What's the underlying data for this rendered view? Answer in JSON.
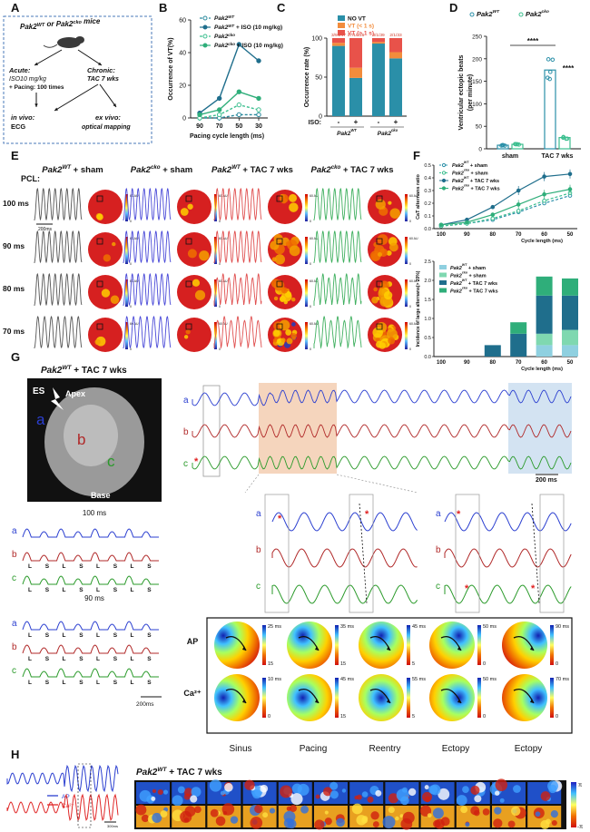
{
  "panels": [
    "A",
    "B",
    "C",
    "D",
    "E",
    "F",
    "G",
    "H"
  ],
  "panelA": {
    "title_pre": "Pak2",
    "title_wt": "WT",
    "title_mid": " or Pak2",
    "title_cko": "cko",
    "title_post": " mice",
    "acute_title": "Acute:",
    "acute_l1": "ISO10 mg/kg",
    "acute_l2": "+ Pacing: 100 times",
    "chronic_title": "Chronic:",
    "chronic_l1": "TAC 7 wks",
    "invivo_title": "in vivo:",
    "invivo_l1": "ECG",
    "exvivo_title": "ex vivo:",
    "exvivo_l1": "optical mapping"
  },
  "chart_data": [
    {
      "panel": "B",
      "type": "line",
      "xlabel": "Pacing cycle length (ms)",
      "ylabel": "Occurrence of VT(%)",
      "x": [
        90,
        70,
        50,
        30
      ],
      "ylim": [
        0,
        60
      ],
      "yticks": [
        0,
        20,
        40,
        60
      ],
      "series": [
        {
          "name": "Pak2WT",
          "values": [
            0,
            0,
            2,
            2
          ],
          "color": "#2a8a9e",
          "dashed": true,
          "filled": false
        },
        {
          "name": "Pak2WT + ISO (10 mg/kg)",
          "values": [
            3,
            12,
            45,
            35
          ],
          "color": "#1f6e8c",
          "dashed": false,
          "filled": true
        },
        {
          "name": "Pak2cko",
          "values": [
            0,
            2,
            8,
            5
          ],
          "color": "#3cbf8f",
          "dashed": true,
          "filled": false
        },
        {
          "name": "Pak2cko + ISO (10 mg/kg)",
          "values": [
            2,
            5,
            16,
            12
          ],
          "color": "#2fae7a",
          "dashed": false,
          "filled": true
        }
      ]
    },
    {
      "panel": "C",
      "type": "bar",
      "stacked": true,
      "ylabel": "Occurrence rate (%)",
      "ylim": [
        0,
        100
      ],
      "yticks": [
        0,
        50,
        100
      ],
      "xlabel_prefix": "ISO:",
      "categories": [
        "-",
        "+",
        "-",
        "+"
      ],
      "group_labels": [
        "Pak2WT",
        "Pak2cko"
      ],
      "counts": [
        "3/94/47",
        "17/10/26",
        "3/1/39",
        "2/1/33"
      ],
      "series": [
        {
          "name": "NO VT",
          "values": [
            90,
            49,
            93,
            74
          ],
          "color": "#2a8fa8"
        },
        {
          "name": "VT (< 1 s)",
          "values": [
            4,
            13,
            2,
            8
          ],
          "color": "#f28c3c"
        },
        {
          "name": "VT (> 1 s)",
          "values": [
            6,
            38,
            5,
            18
          ],
          "color": "#e8524a"
        }
      ]
    },
    {
      "panel": "D",
      "type": "bar",
      "ylabel": "Ventricular ectopic beats (per minute)",
      "ylim": [
        0,
        250
      ],
      "yticks": [
        0,
        50,
        100,
        150,
        200,
        250
      ],
      "categories": [
        "sham",
        "TAC 7 wks"
      ],
      "series": [
        {
          "name": "Pak2WT",
          "values": [
            8,
            175
          ],
          "color": "#2a8fa8"
        },
        {
          "name": "Pak2cko",
          "values": [
            10,
            25
          ],
          "color": "#3cbf8f"
        }
      ],
      "significance": [
        "****",
        "****"
      ]
    },
    {
      "panel": "F-top",
      "type": "line",
      "xlabel": "Cycle length (ms)",
      "ylabel": "CaT alternans ratio",
      "x": [
        100,
        90,
        80,
        70,
        60,
        50
      ],
      "ylim": [
        0.0,
        0.5
      ],
      "yticks": [
        0.0,
        0.1,
        0.2,
        0.3,
        0.4,
        0.5
      ],
      "series": [
        {
          "name": "Pak2WT + sham",
          "values": [
            0.02,
            0.04,
            0.07,
            0.13,
            0.2,
            0.26
          ],
          "color": "#2a8fa8",
          "dashed": true
        },
        {
          "name": "Pak2cko + sham",
          "values": [
            0.02,
            0.04,
            0.08,
            0.14,
            0.22,
            0.28
          ],
          "color": "#3cbf8f",
          "dashed": true
        },
        {
          "name": "Pak2WT + TAC 7 wks",
          "values": [
            0.03,
            0.07,
            0.17,
            0.3,
            0.41,
            0.43
          ],
          "color": "#1f6e8c",
          "dashed": false
        },
        {
          "name": "Pak2cko + TAC 7 wks",
          "values": [
            0.03,
            0.05,
            0.11,
            0.19,
            0.27,
            0.31
          ],
          "color": "#2fae7a",
          "dashed": false
        }
      ]
    },
    {
      "panel": "F-bottom",
      "type": "bar",
      "stacked": true,
      "xlabel": "Cycle length (ms)",
      "ylabel": "Incidence of large alternans(> 20%)",
      "categories": [
        "100",
        "90",
        "80",
        "70",
        "60",
        "50"
      ],
      "ylim": [
        0.0,
        2.5
      ],
      "yticks": [
        0.0,
        0.5,
        1.0,
        1.5,
        2.0,
        2.5
      ],
      "series": [
        {
          "name": "Pak2WT + sham",
          "values": [
            0,
            0,
            0,
            0,
            0.3,
            0.3
          ],
          "color": "#8fd0e0"
        },
        {
          "name": "Pak2cko + sham",
          "values": [
            0,
            0,
            0,
            0,
            0.3,
            0.4
          ],
          "color": "#7fd8b0"
        },
        {
          "name": "Pak2WT + TAC 7 wks",
          "values": [
            0,
            0,
            0.3,
            0.6,
            1.0,
            0.9
          ],
          "color": "#1f6e8c"
        },
        {
          "name": "Pak2cko + TAC 7 wks",
          "values": [
            0,
            0,
            0,
            0.3,
            0.5,
            0.45
          ],
          "color": "#2fae7a"
        }
      ]
    }
  ],
  "panelE": {
    "pcl_label": "PCL:",
    "cols": [
      {
        "pre": "Pak2",
        "sup": "WT",
        "post": " + sham",
        "color": "#555555"
      },
      {
        "pre": "Pak2",
        "sup": "cko",
        "post": " + sham",
        "color": "#4a4ad8"
      },
      {
        "pre": "Pak2",
        "sup": "WT",
        "post": " + TAC 7 wks",
        "color": "#e05050"
      },
      {
        "pre": "Pak2",
        "sup": "cko",
        "post": " + TAC 7 wks",
        "color": "#40b060"
      }
    ],
    "rows": [
      "100 ms",
      "90 ms",
      "80 ms",
      "70 ms"
    ],
    "scale": "200ms",
    "au_label": "60 AU",
    "au_zero": "0"
  },
  "panelG": {
    "title_pre": "Pak2",
    "title_sup": "WT",
    "title_post": " + TAC 7 wks",
    "es": "ES",
    "apex": "Apex",
    "base": "Base",
    "sites": [
      "a",
      "b",
      "c"
    ],
    "trace_colors": [
      "#2b3fd0",
      "#b02828",
      "#2a9a2a"
    ],
    "pcl1": "100 ms",
    "pcl2": "90 ms",
    "ls_100": [
      "L",
      "S",
      "L",
      "S",
      "L",
      "S",
      "L",
      "S"
    ],
    "ls_90": [
      "L",
      "S",
      "L",
      "S",
      "L",
      "S",
      "L",
      "S"
    ],
    "scale": "200 ms",
    "scale2": "200ms",
    "map_rows": [
      "AP",
      "Ca²⁺"
    ],
    "map_cols": [
      "Sinus",
      "Pacing",
      "Reentry",
      "Ectopy",
      "Ectopy"
    ],
    "ap_max": [
      "25 ms",
      "35 ms",
      "45 ms",
      "50 ms",
      "90 ms"
    ],
    "ap_min": [
      "15",
      "15",
      "5",
      "0",
      "0"
    ],
    "ca_max": [
      "10 ms",
      "45 ms",
      "55 ms",
      "50 ms",
      "70 ms"
    ],
    "ca_min": [
      "0",
      "15",
      "5",
      "0",
      "0"
    ]
  },
  "panelH": {
    "title_pre": "Pak2",
    "title_sup": "WT",
    "title_post": " + TAC 7 wks",
    "legend": [
      "AP",
      "Ca²⁺"
    ],
    "scale": "300ms",
    "pi_top": "π",
    "pi_bottom": "-π"
  }
}
